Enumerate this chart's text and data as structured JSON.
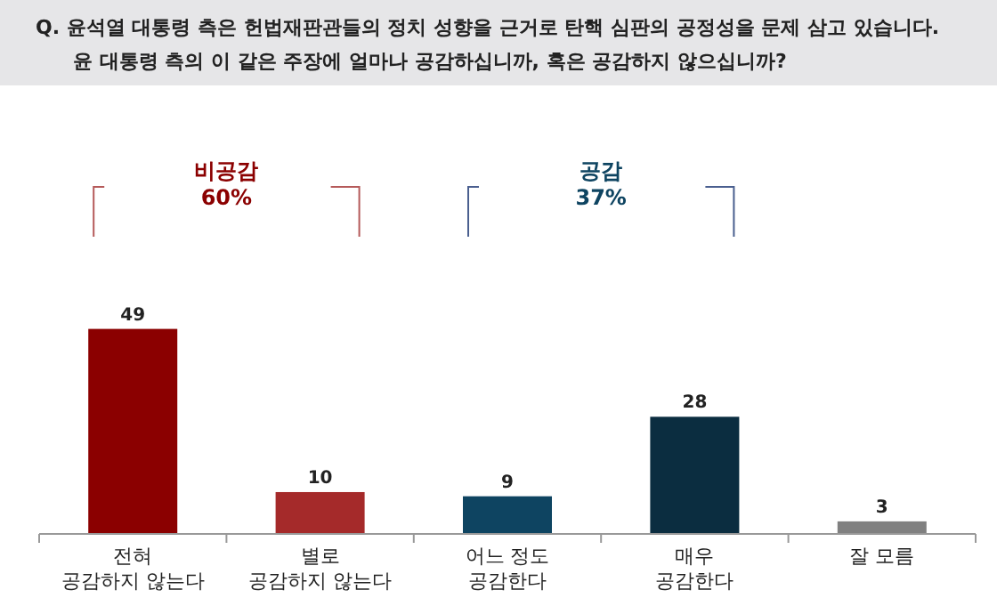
{
  "chart_data": {
    "type": "bar",
    "title": "Q. 윤석열 대통령 측은 헌법재판관들의 정치 성향을 근거로 탄핵 심판의 공정성을 문제 삼고 있습니다.",
    "subtitle": "윤 대통령 측의 이 같은 주장에 얼마나 공감하십니까, 혹은 공감하지 않으십니까?",
    "categories": [
      "전혀\n공감하지 않는다",
      "별로\n공감하지 않는다",
      "어느 정도\n공감한다",
      "매우\n공감한다",
      "잘 모름"
    ],
    "values": [
      49,
      10,
      9,
      28,
      3
    ],
    "colors": [
      "#8b0000",
      "#a52a2a",
      "#0e4461",
      "#0b2d40",
      "#808080"
    ],
    "data_labels": true,
    "annotations": [
      "비공감\n60%",
      "공감\n37%"
    ]
  }
}
